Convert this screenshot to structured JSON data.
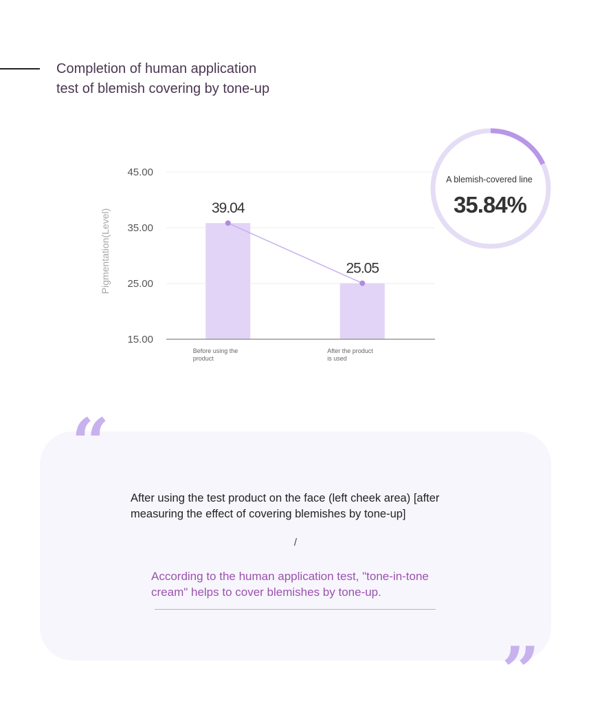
{
  "header": {
    "title": "Completion of human application test of blemish covering by tone-up"
  },
  "chart_data": {
    "type": "bar",
    "categories": [
      "Before using the product",
      "After the product is used"
    ],
    "values": [
      39.04,
      25.05
    ],
    "value_labels": [
      "39.04",
      "25.05"
    ],
    "ylabel": "Pigmentation(Level)",
    "ylim": [
      15,
      45
    ],
    "yticks": [
      "15.00",
      "25.00",
      "35.00",
      "45.00"
    ],
    "grid": true,
    "connector_line": true,
    "bar_color": "#e1d4f6",
    "line_color": "#c6b0ee",
    "point_color": "#b08be0"
  },
  "badge": {
    "label": "A blemish-covered line",
    "value": "35.84%",
    "fraction": 0.18,
    "ring_color": "#e4ddf5",
    "arc_color": "#b996e6"
  },
  "quote": {
    "open_mark": "“",
    "close_mark": "”",
    "text": "After using the test product on the face (left cheek area) [after measuring the effect of covering blemishes by tone-up]",
    "divider": "/",
    "conclusion": "According to the human application test, \"tone-in-tone cream\" helps to cover blemishes by tone-up."
  }
}
